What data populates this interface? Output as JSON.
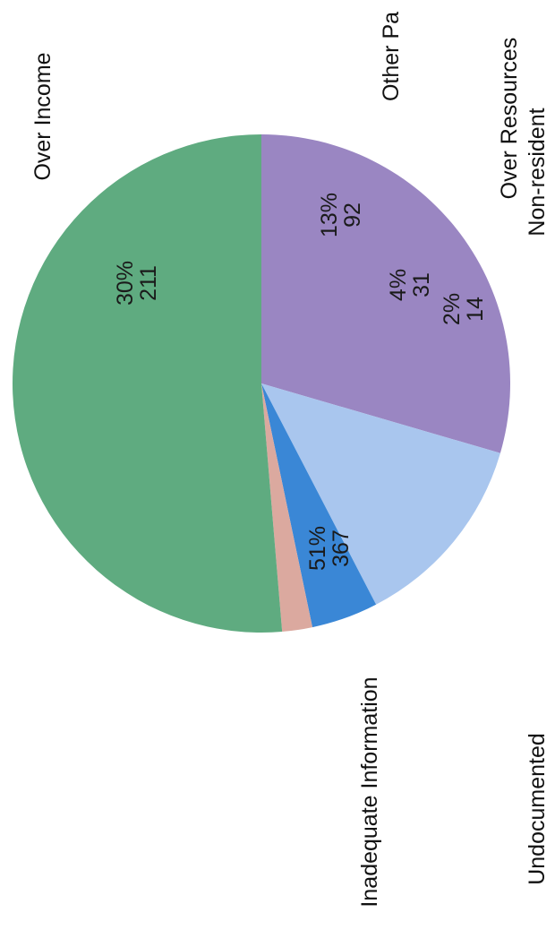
{
  "chart_data": {
    "type": "pie",
    "title": "",
    "slices": [
      {
        "label": "Over Income",
        "value": 211,
        "percent_label": "30%",
        "count_label": "211",
        "color": "#9a86c2"
      },
      {
        "label": "Other Pa",
        "value": 92,
        "percent_label": "13%",
        "count_label": "92",
        "color": "#a9c6ee"
      },
      {
        "label": "Over Resources",
        "value": 31,
        "percent_label": "4%",
        "count_label": "31",
        "color": "#3a87d6"
      },
      {
        "label": "Non-resident",
        "value": 14,
        "percent_label": "2%",
        "count_label": "14",
        "color": "#dba99f"
      },
      {
        "label": "Inadequate Information",
        "value": 367,
        "percent_label": "51%",
        "count_label": "367",
        "color": "#5fab80"
      },
      {
        "label": "Undocumented",
        "value": 0,
        "percent_label": "",
        "count_label": "",
        "color": "#cccccc"
      }
    ],
    "legend": "none"
  }
}
